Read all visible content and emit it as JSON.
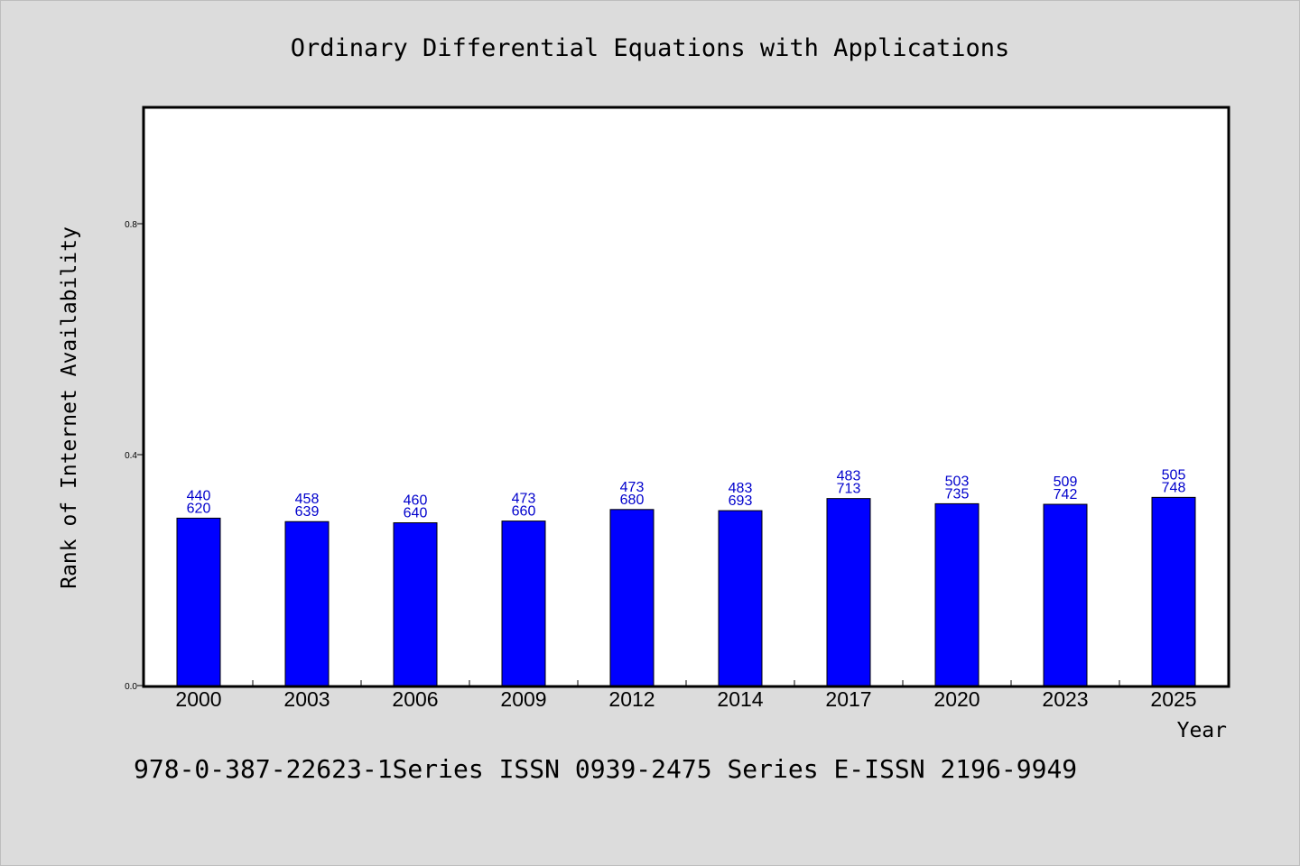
{
  "chart_data": {
    "type": "bar",
    "title": "Ordinary Differential Equations with Applications",
    "xlabel": "Year",
    "ylabel": "Rank of Internet Availability",
    "footer": "978-0-387-22623-1Series ISSN 0939-2475 Series E-ISSN 2196-9949",
    "categories": [
      "2000",
      "2003",
      "2006",
      "2009",
      "2012",
      "2014",
      "2017",
      "2020",
      "2023",
      "2025"
    ],
    "values": [
      0.29,
      0.284,
      0.282,
      0.285,
      0.305,
      0.303,
      0.324,
      0.315,
      0.314,
      0.326
    ],
    "label_top": [
      "440",
      "458",
      "460",
      "473",
      "473",
      "483",
      "483",
      "503",
      "509",
      "505"
    ],
    "label_bottom": [
      "620",
      "639",
      "640",
      "660",
      "680",
      "693",
      "713",
      "735",
      "742",
      "748"
    ],
    "ylim": [
      0,
      1.0
    ],
    "yticks": [
      0.0,
      0.4,
      0.8
    ],
    "ytick_labels": [
      "0.0",
      "0.4",
      "0.8"
    ],
    "grid": false,
    "bar_color": "#0000ff",
    "label_color": "#0000cc"
  }
}
